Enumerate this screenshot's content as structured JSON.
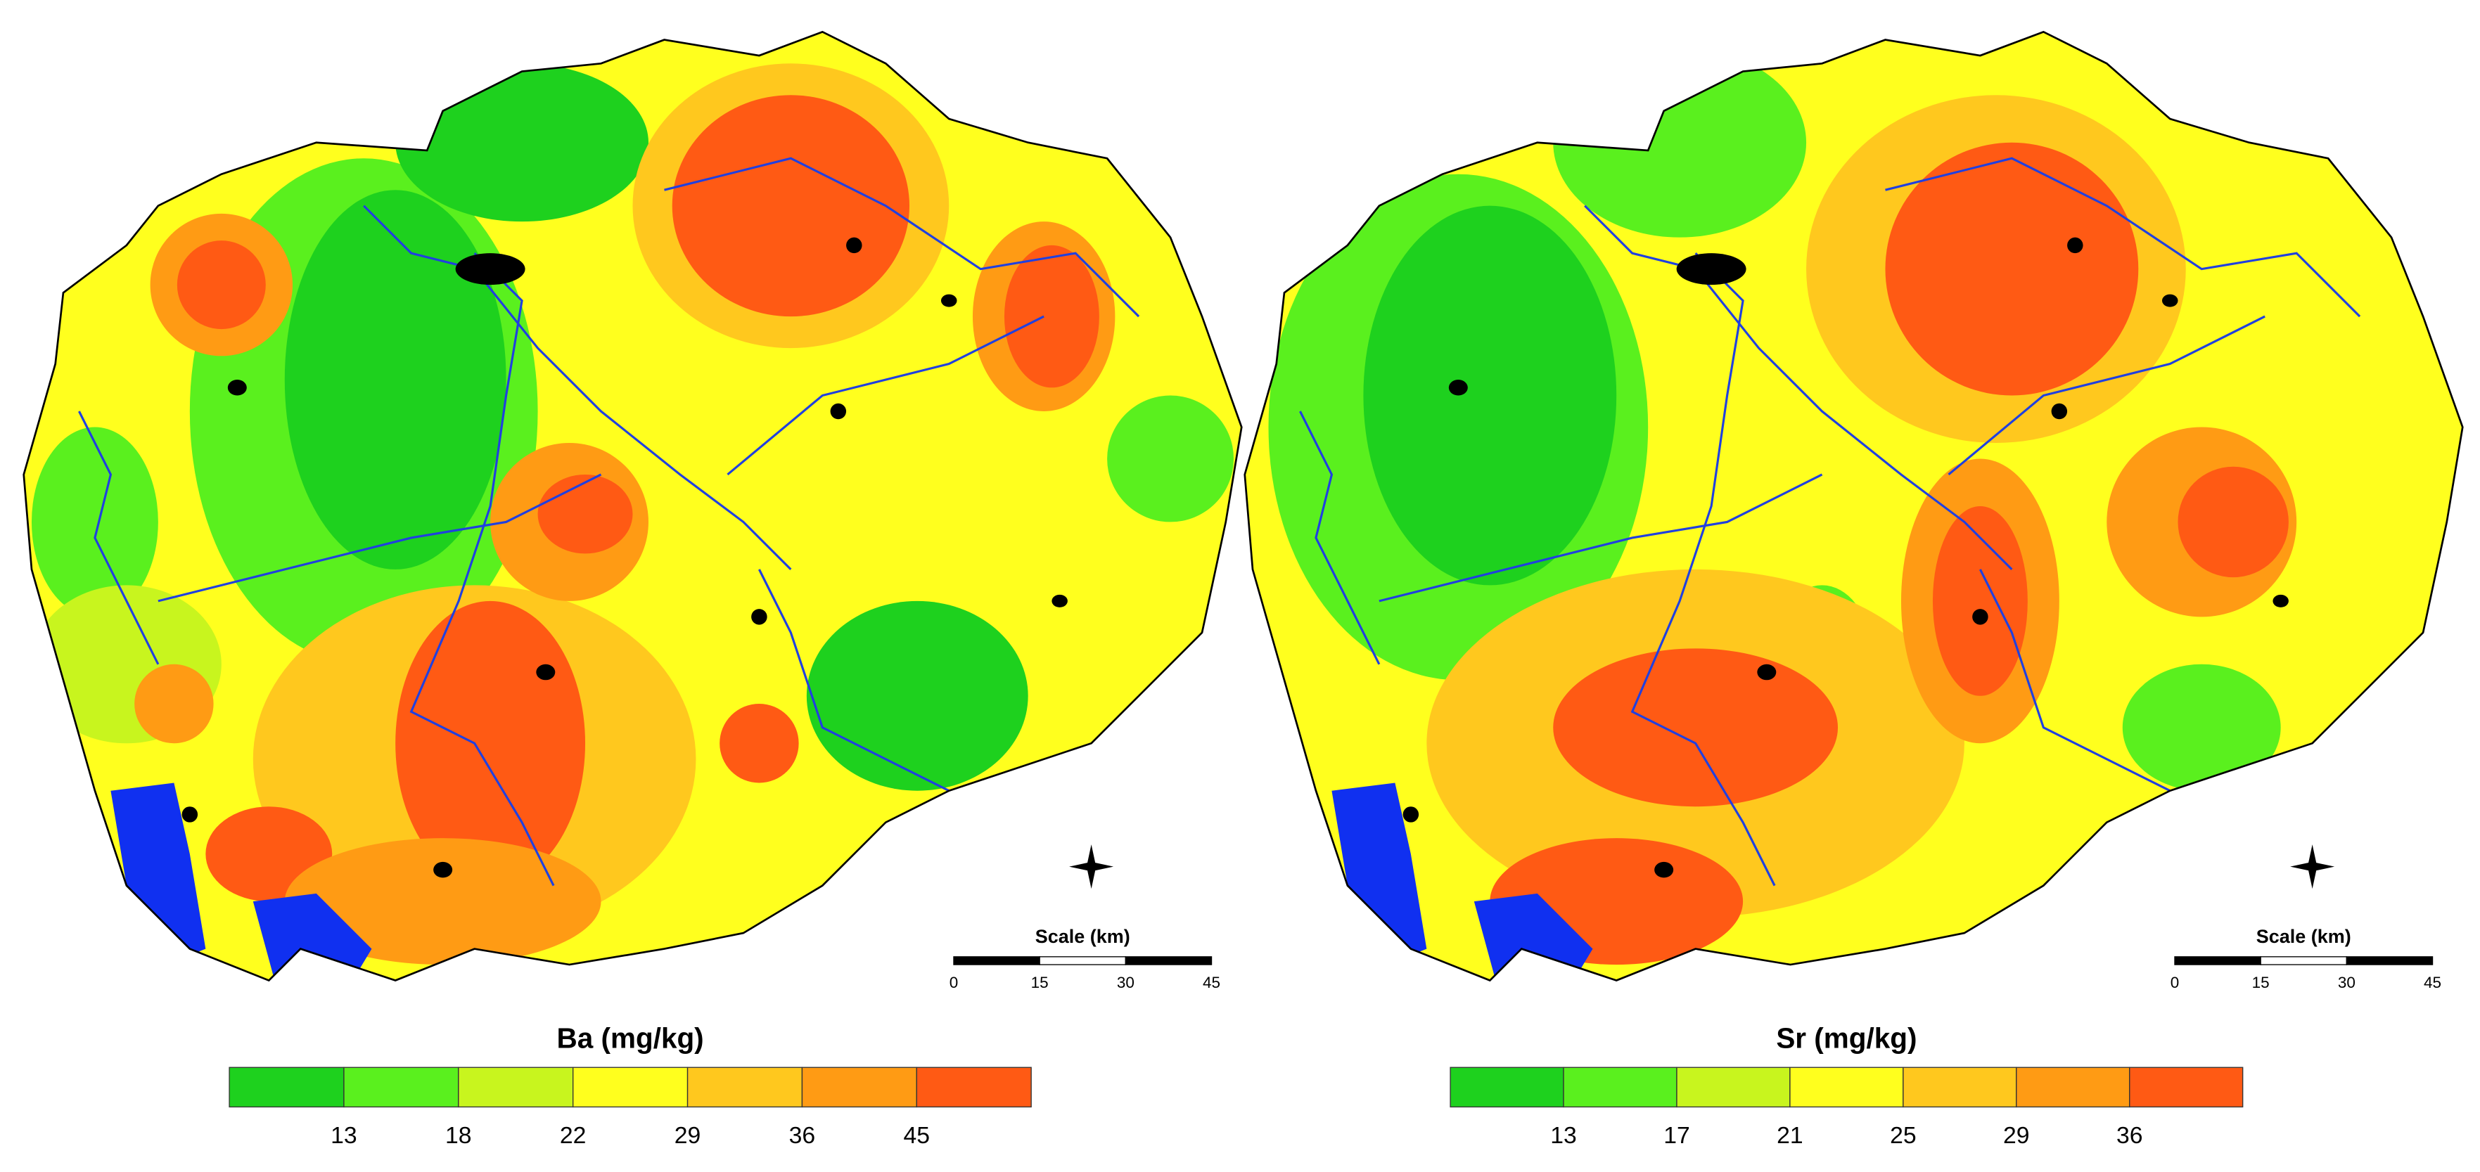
{
  "maps": [
    {
      "legend": {
        "title": "Ba (mg/kg)",
        "colors": [
          "#1ed11e",
          "#5af01e",
          "#c8f51e",
          "#ffff1e",
          "#ffc81e",
          "#ff9b14",
          "#ff5a14"
        ],
        "breaks": [
          13,
          18,
          22,
          29,
          36,
          45
        ]
      },
      "scale": {
        "title": "Scale (km)",
        "ticks": [
          0,
          15,
          30,
          45
        ]
      }
    },
    {
      "legend": {
        "title": "Sr (mg/kg)",
        "colors": [
          "#1ed11e",
          "#5af01e",
          "#c8f51e",
          "#ffff1e",
          "#ffc81e",
          "#ff9b14",
          "#ff5a14"
        ],
        "breaks": [
          13,
          17,
          21,
          25,
          29,
          36
        ]
      },
      "scale": {
        "title": "Scale (km)",
        "ticks": [
          0,
          15,
          30,
          45
        ]
      }
    }
  ]
}
